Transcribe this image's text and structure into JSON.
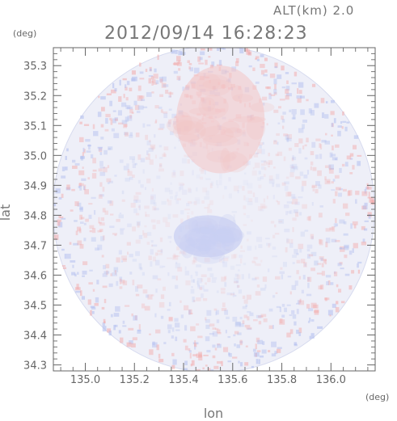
{
  "chart_data": {
    "type": "heatmap",
    "title": "2012/09/14 16:28:23",
    "subtitle": "ALT(km) 2.0",
    "xlabel": "lon",
    "ylabel": "lat",
    "x_unit": "(deg)",
    "y_unit": "(deg)",
    "xlim": [
      134.87,
      136.18
    ],
    "ylim": [
      34.28,
      35.36
    ],
    "x_ticks": [
      135.0,
      135.2,
      135.4,
      135.6,
      135.8,
      136.0
    ],
    "x_tick_labels": [
      "135.0",
      "135.2",
      "135.4",
      "135.6",
      "135.8",
      "136.0"
    ],
    "y_ticks": [
      34.3,
      34.4,
      34.5,
      34.6,
      34.7,
      34.8,
      34.9,
      35.0,
      35.1,
      35.2,
      35.3
    ],
    "y_tick_labels": [
      "34.3",
      "34.4",
      "34.5",
      "34.6",
      "34.7",
      "34.8",
      "34.9",
      "35.0",
      "35.1",
      "35.2",
      "35.3"
    ],
    "grid": false,
    "colors": {
      "positive": "#f4b7b7",
      "negative": "#b9c3ef",
      "neutral": "#eeeff8"
    },
    "disk": {
      "center": [
        135.523,
        34.82
      ],
      "radius_lon": 0.655,
      "radius_lat": 0.545
    },
    "features": [
      {
        "kind": "positive",
        "center": [
          135.55,
          35.12
        ],
        "radius_lon": 0.18,
        "radius_lat": 0.18
      },
      {
        "kind": "negative",
        "center": [
          135.5,
          34.73
        ],
        "radius_lon": 0.14,
        "radius_lat": 0.07
      }
    ]
  }
}
